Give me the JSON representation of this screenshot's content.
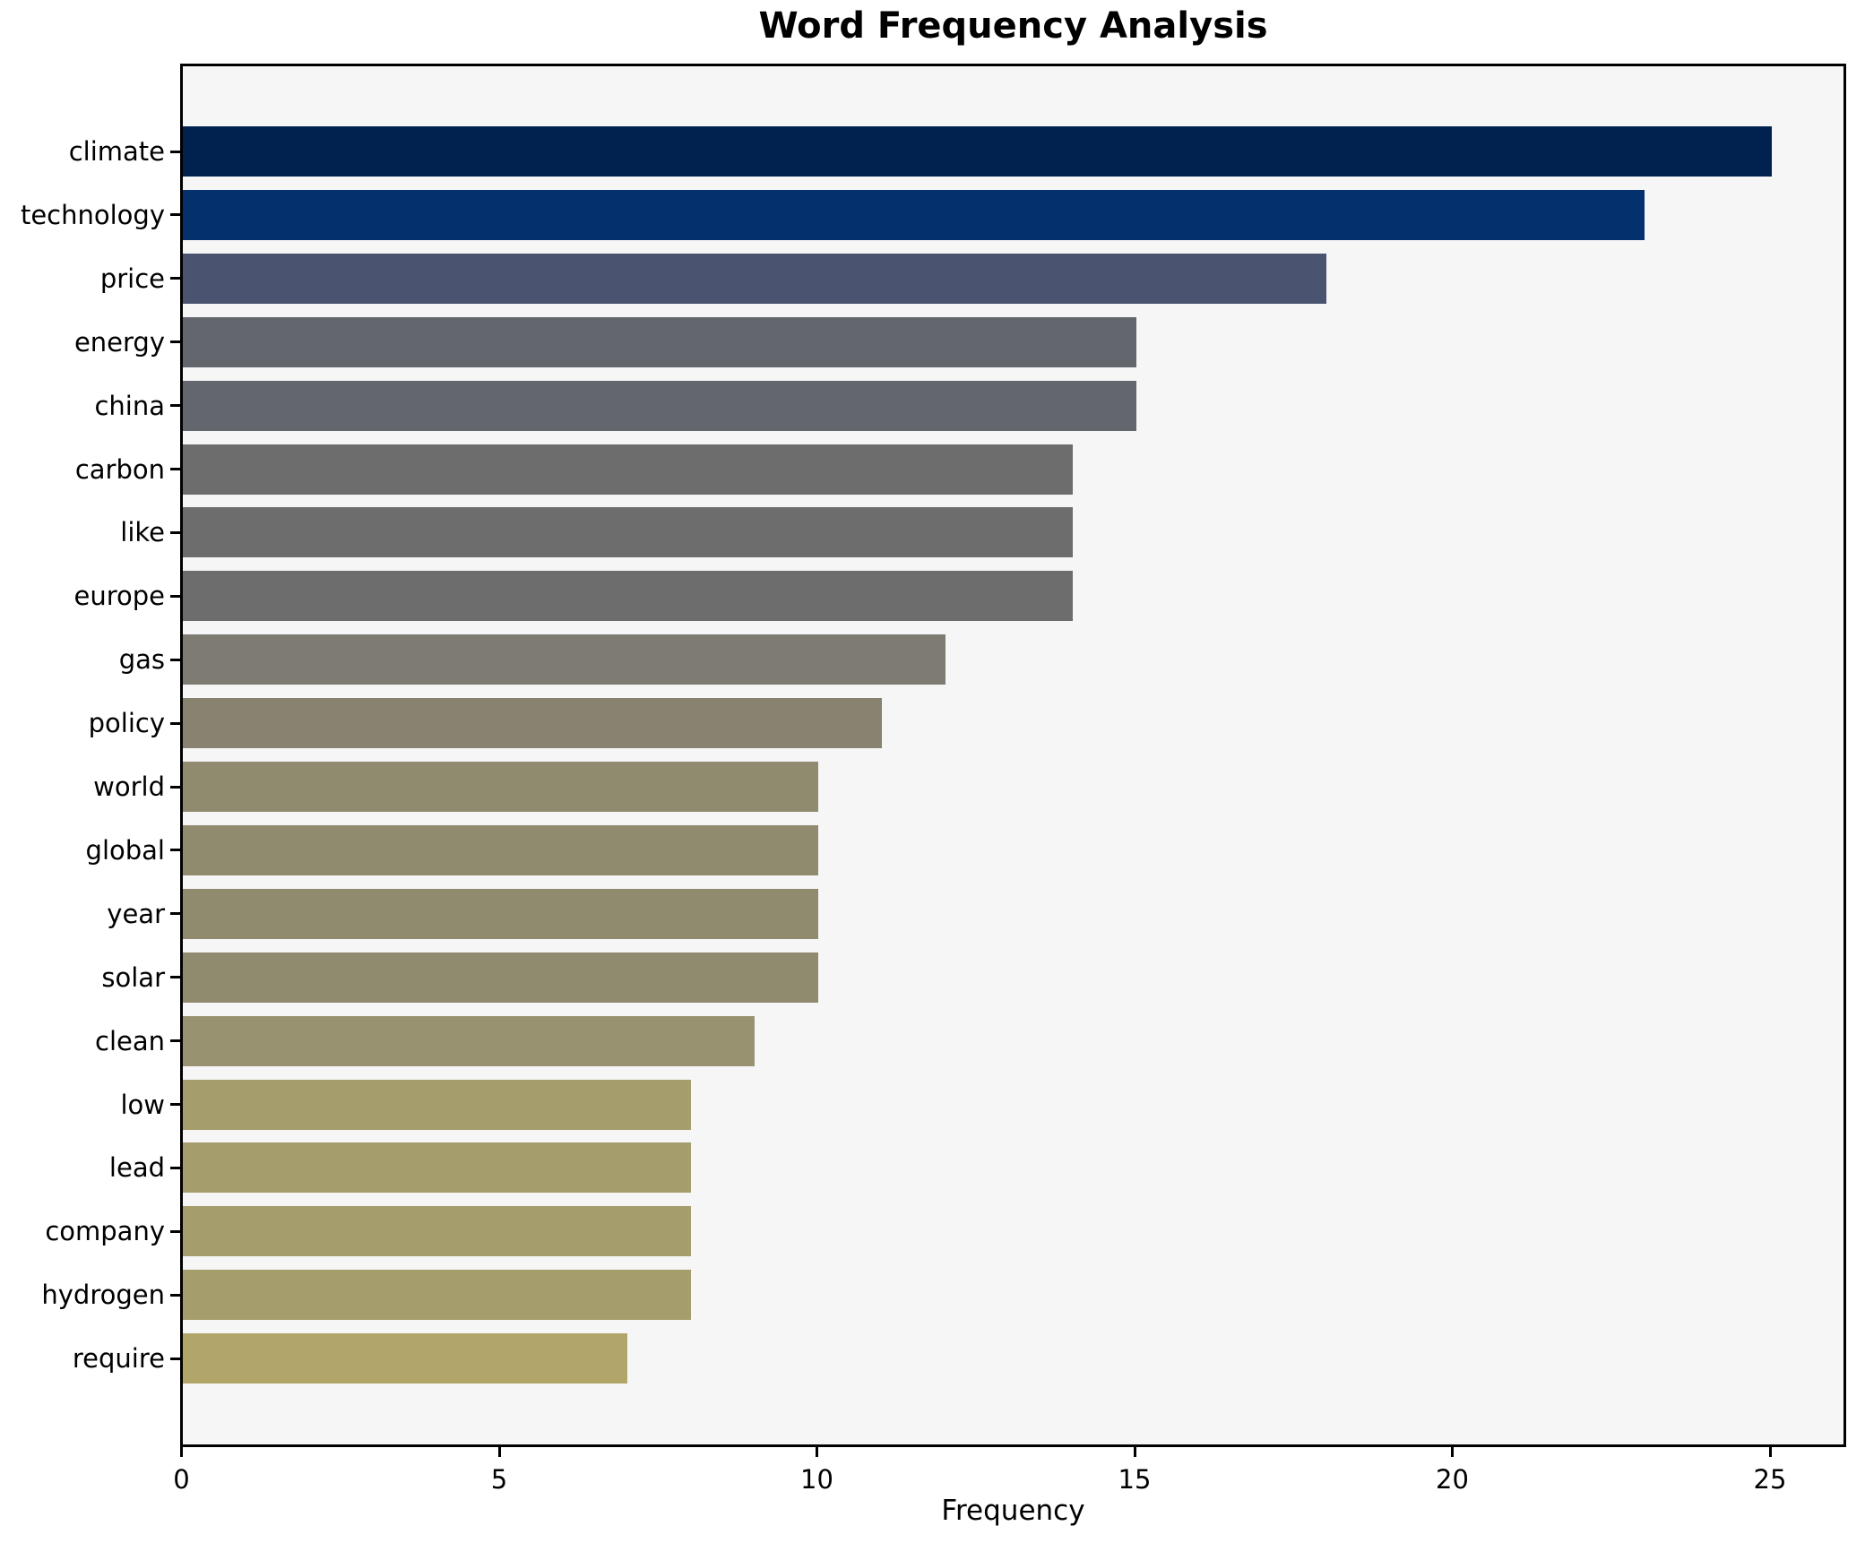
{
  "figure": {
    "background": "#ffffff"
  },
  "chart_data": {
    "type": "bar",
    "orientation": "horizontal",
    "title": "Word Frequency Analysis",
    "xlabel": "Frequency",
    "ylabel": "",
    "grid": false,
    "legend": null,
    "plot_background": "#f6f6f7",
    "axis_color": "#000000",
    "xlim": [
      0,
      26.2
    ],
    "x_ticks": [
      0,
      5,
      10,
      15,
      20,
      25
    ],
    "categories": [
      "climate",
      "technology",
      "price",
      "energy",
      "china",
      "carbon",
      "like",
      "europe",
      "gas",
      "policy",
      "world",
      "global",
      "year",
      "solar",
      "clean",
      "low",
      "lead",
      "company",
      "hydrogen",
      "require"
    ],
    "values": [
      25,
      23,
      18,
      15,
      15,
      14,
      14,
      14,
      12,
      11,
      10,
      10,
      10,
      10,
      9,
      8,
      8,
      8,
      8,
      7
    ],
    "bar_colors": [
      "#01224e",
      "#04316e",
      "#4a5470",
      "#64666e",
      "#64666e",
      "#6d6d6e",
      "#6d6d6e",
      "#6d6d6e",
      "#7e7b72",
      "#888371",
      "#908a6f",
      "#908a6f",
      "#908a6f",
      "#908a6f",
      "#999270",
      "#a69d6d",
      "#a69d6d",
      "#a69d6d",
      "#a69d6d",
      "#b1a569"
    ]
  }
}
